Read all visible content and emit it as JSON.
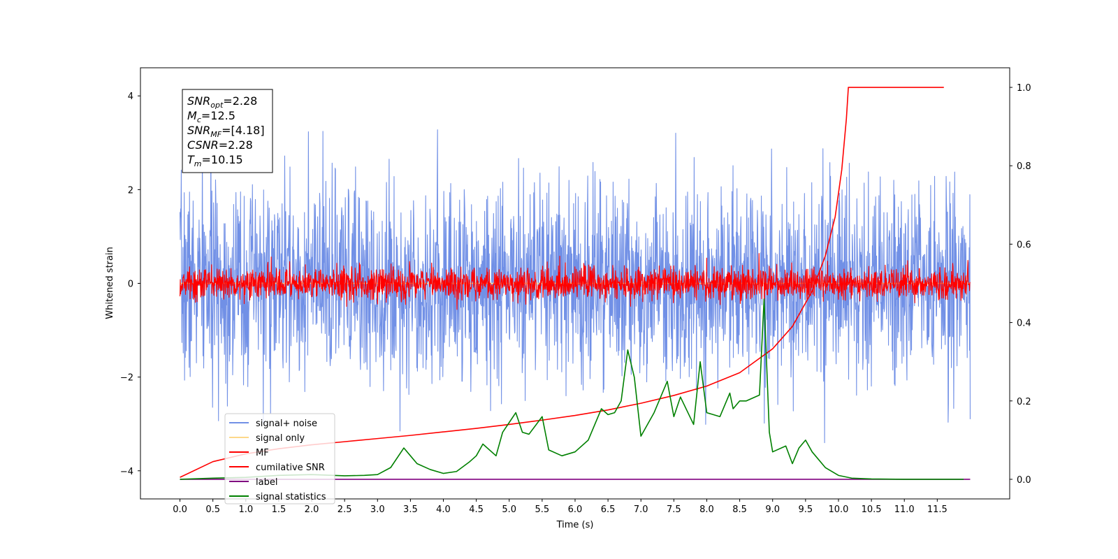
{
  "chart_data": {
    "type": "line",
    "title": "",
    "xlabel": "Time (s)",
    "ylabel": "Whitened strain",
    "xlim": [
      -0.6,
      12.6
    ],
    "ylim": [
      -4.6,
      4.6
    ],
    "y2lim": [
      -0.05,
      1.05
    ],
    "grid": false,
    "legend_position": "lower-left",
    "x_ticks": [
      "0.0",
      "0.5",
      "1.0",
      "1.5",
      "2.0",
      "2.5",
      "3.0",
      "3.5",
      "4.0",
      "4.5",
      "5.0",
      "5.5",
      "6.0",
      "6.5",
      "7.0",
      "7.5",
      "8.0",
      "8.5",
      "9.0",
      "9.5",
      "10.0",
      "10.5",
      "11.0",
      "11.5"
    ],
    "y_ticks": [
      "4",
      "2",
      "0",
      "−2",
      "−4"
    ],
    "y2_ticks": [
      "1.0",
      "0.8",
      "0.6",
      "0.4",
      "0.2",
      "0.0"
    ],
    "stats_box": [
      {
        "sym": "SNR",
        "sub": "opt",
        "val": "=2.28"
      },
      {
        "sym": "M",
        "sub": "c",
        "val": "=12.5"
      },
      {
        "sym": "SNR",
        "sub": "MF",
        "val": "=[4.18]"
      },
      {
        "sym": "CSNR",
        "sub": "",
        "val": "=2.28"
      },
      {
        "sym": "T",
        "sub": "m",
        "val": "=10.15"
      }
    ],
    "series": [
      {
        "name": "signal+ noise",
        "color": "#7190e6",
        "axis": "left",
        "noise": {
          "seed": 7,
          "n": 2400,
          "x_start": 0.0,
          "x_end": 12.0,
          "sigma": 1.05,
          "max_abs": 4.2
        }
      },
      {
        "name": "signal only",
        "color": "#fdd88a",
        "axis": "left",
        "x": [
          0.0,
          12.0
        ],
        "values": [
          0.0,
          0.0
        ]
      },
      {
        "name": "MF",
        "color": "#ff0000",
        "axis": "left",
        "noise": {
          "seed": 13,
          "n": 2400,
          "x_start": 0.0,
          "x_end": 12.0,
          "sigma": 0.17,
          "max_abs": 1.0
        }
      },
      {
        "name": "cumilative SNR",
        "color": "#ff0000",
        "axis": "right",
        "x": [
          0.0,
          0.5,
          1.0,
          1.5,
          2.0,
          2.5,
          3.0,
          3.5,
          4.0,
          4.5,
          5.0,
          5.5,
          6.0,
          6.5,
          7.0,
          7.5,
          8.0,
          8.5,
          9.0,
          9.3,
          9.6,
          9.8,
          9.95,
          10.05,
          10.12,
          10.15,
          11.6
        ],
        "values": [
          0.005,
          0.045,
          0.065,
          0.078,
          0.088,
          0.096,
          0.104,
          0.112,
          0.121,
          0.13,
          0.14,
          0.151,
          0.163,
          0.177,
          0.194,
          0.214,
          0.238,
          0.272,
          0.333,
          0.39,
          0.48,
          0.57,
          0.67,
          0.79,
          0.92,
          1.0,
          1.0
        ]
      },
      {
        "name": "label",
        "color": "#800080",
        "axis": "right",
        "x": [
          0.0,
          12.0
        ],
        "values": [
          0.0,
          0.0
        ]
      },
      {
        "name": "signal statistics",
        "color": "#008000",
        "axis": "right",
        "x": [
          0.0,
          0.5,
          1.0,
          1.5,
          2.0,
          2.5,
          2.8,
          3.0,
          3.2,
          3.4,
          3.5,
          3.6,
          3.8,
          4.0,
          4.2,
          4.4,
          4.5,
          4.6,
          4.8,
          4.9,
          5.0,
          5.1,
          5.2,
          5.3,
          5.5,
          5.6,
          5.8,
          6.0,
          6.2,
          6.4,
          6.5,
          6.6,
          6.7,
          6.8,
          6.9,
          7.0,
          7.2,
          7.4,
          7.5,
          7.6,
          7.8,
          7.9,
          8.0,
          8.2,
          8.35,
          8.4,
          8.5,
          8.6,
          8.8,
          8.87,
          8.95,
          9.0,
          9.2,
          9.3,
          9.4,
          9.5,
          9.6,
          9.8,
          10.0,
          10.2,
          10.5,
          11.0,
          11.9
        ],
        "values": [
          0.0,
          0.003,
          0.005,
          0.01,
          0.012,
          0.009,
          0.01,
          0.012,
          0.03,
          0.08,
          0.06,
          0.04,
          0.025,
          0.015,
          0.02,
          0.045,
          0.06,
          0.09,
          0.06,
          0.12,
          0.145,
          0.17,
          0.12,
          0.115,
          0.16,
          0.075,
          0.06,
          0.07,
          0.1,
          0.18,
          0.165,
          0.17,
          0.2,
          0.33,
          0.26,
          0.11,
          0.17,
          0.25,
          0.16,
          0.21,
          0.14,
          0.3,
          0.17,
          0.16,
          0.22,
          0.18,
          0.2,
          0.2,
          0.215,
          0.46,
          0.12,
          0.07,
          0.085,
          0.04,
          0.08,
          0.1,
          0.07,
          0.03,
          0.01,
          0.003,
          0.001,
          0.0,
          0.0
        ]
      }
    ]
  }
}
